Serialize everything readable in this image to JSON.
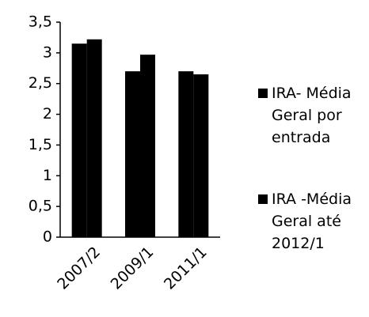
{
  "chart_data": {
    "type": "bar",
    "categories": [
      "2007/2",
      "2009/1",
      "2011/1"
    ],
    "series": [
      {
        "name": "IRA- Média Geral por entrada",
        "color": "#000000",
        "values": [
          3.15,
          2.7,
          2.7
        ]
      },
      {
        "name": "IRA -Média Geral até 2012/1",
        "color": "#000000",
        "values": [
          3.22,
          2.97,
          2.65
        ]
      }
    ],
    "ylim": [
      0,
      3.5
    ],
    "yticks": [
      0,
      {
        "value": 0.5,
        "label": "0,5"
      },
      1,
      {
        "value": 1.5,
        "label": "1,5"
      },
      2,
      {
        "value": 2.5,
        "label": "2,5"
      },
      3,
      {
        "value": 3.5,
        "label": "3,5"
      }
    ],
    "legend": "right"
  }
}
